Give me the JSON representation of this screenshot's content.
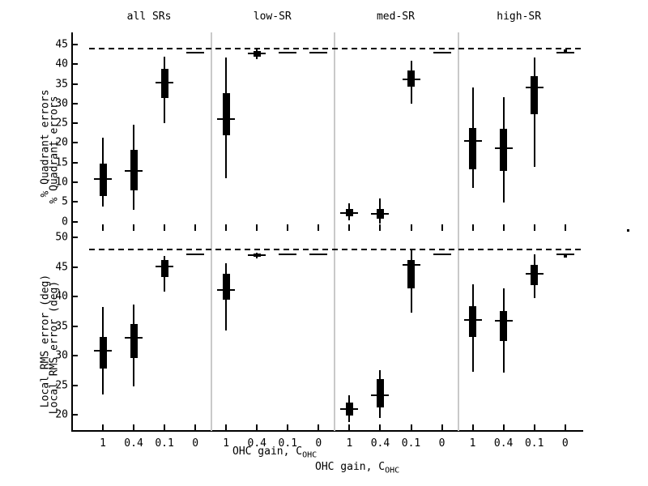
{
  "colors": {
    "foreground": "#000000",
    "background": "#ffffff",
    "separator": "#c9c9c9"
  },
  "column_titles": [
    "all SRs",
    "low-SR",
    "med-SR",
    "high-SR"
  ],
  "xlabel": {
    "text": "OHC gain, C",
    "subscript": "OHC",
    "note": "label rendered twice in original figure"
  },
  "chart_data": [
    {
      "type": "boxplot",
      "panel": "top",
      "ylabel": "% Quadrant errors",
      "ylabel_drawn_twice": true,
      "ylim": [
        -2.3,
        48.1
      ],
      "yticks": [
        0,
        5,
        10,
        15,
        20,
        25,
        30,
        35,
        40,
        45
      ],
      "dashed_reference_line": 43.9,
      "categories": [
        "1",
        "0.4",
        "0.1",
        "0"
      ],
      "groups": [
        {
          "name": "all SRs",
          "boxes": [
            {
              "x": "1",
              "whisker_low": 3.8,
              "q1": 6.6,
              "median": 10.9,
              "q3": 14.8,
              "whisker_high": 21.3
            },
            {
              "x": "0.4",
              "whisker_low": 3.1,
              "q1": 8.0,
              "median": 12.8,
              "q3": 18.2,
              "whisker_high": 24.7
            },
            {
              "x": "0.1",
              "whisker_low": 25.1,
              "q1": 31.3,
              "median": 35.3,
              "q3": 38.9,
              "whisker_high": 41.8
            },
            {
              "x": "0",
              "median": 42.9,
              "line_only": true
            }
          ]
        },
        {
          "name": "low-SR",
          "boxes": [
            {
              "x": "1",
              "whisker_low": 11.0,
              "q1": 22.0,
              "median": 26.1,
              "q3": 32.6,
              "whisker_high": 41.7
            },
            {
              "x": "0.4",
              "whisker_low": 41.2,
              "q1": 41.9,
              "median": 42.7,
              "q3": 43.3,
              "whisker_high": 43.7
            },
            {
              "x": "0.1",
              "median": 42.9,
              "line_only": true
            },
            {
              "x": "0",
              "median": 42.9,
              "line_only": true
            }
          ]
        },
        {
          "name": "med-SR",
          "boxes": [
            {
              "x": "1",
              "whisker_low": 0.4,
              "q1": 1.3,
              "median": 2.1,
              "q3": 3.2,
              "whisker_high": 4.7
            },
            {
              "x": "0.4",
              "whisker_low": -0.5,
              "q1": 0.8,
              "median": 1.9,
              "q3": 3.2,
              "whisker_high": 5.9
            },
            {
              "x": "0.1",
              "whisker_low": 29.9,
              "q1": 34.3,
              "median": 36.1,
              "q3": 38.3,
              "whisker_high": 40.9
            },
            {
              "x": "0",
              "median": 42.9,
              "line_only": true
            }
          ]
        },
        {
          "name": "high-SR",
          "boxes": [
            {
              "x": "1",
              "whisker_low": 8.6,
              "q1": 13.3,
              "median": 20.6,
              "q3": 23.7,
              "whisker_high": 34.0
            },
            {
              "x": "0.4",
              "whisker_low": 4.9,
              "q1": 12.8,
              "median": 18.7,
              "q3": 23.6,
              "whisker_high": 31.6
            },
            {
              "x": "0.1",
              "whisker_low": 14.0,
              "q1": 27.3,
              "median": 34.0,
              "q3": 36.9,
              "whisker_high": 41.7
            },
            {
              "x": "0",
              "median": 42.9,
              "line_only": true,
              "outlier": 43.5
            }
          ]
        }
      ]
    },
    {
      "type": "boxplot",
      "panel": "bottom",
      "ylabel": "Local RMS error (deg)",
      "ylabel_drawn_twice": true,
      "ylim": [
        17.2,
        50.7
      ],
      "yticks": [
        20,
        25,
        30,
        35,
        40,
        45,
        50
      ],
      "dashed_reference_line": 48.0,
      "categories": [
        "1",
        "0.4",
        "0.1",
        "0"
      ],
      "groups": [
        {
          "name": "all SRs",
          "boxes": [
            {
              "x": "1",
              "whisker_low": 23.4,
              "q1": 27.8,
              "median": 30.8,
              "q3": 33.1,
              "whisker_high": 38.2
            },
            {
              "x": "0.4",
              "whisker_low": 24.8,
              "q1": 29.6,
              "median": 33.0,
              "q3": 35.3,
              "whisker_high": 38.6
            },
            {
              "x": "0.1",
              "whisker_low": 40.8,
              "q1": 43.3,
              "median": 45.1,
              "q3": 46.1,
              "whisker_high": 46.8
            },
            {
              "x": "0",
              "median": 47.1,
              "line_only": true
            }
          ]
        },
        {
          "name": "low-SR",
          "boxes": [
            {
              "x": "1",
              "whisker_low": 34.2,
              "q1": 39.5,
              "median": 41.1,
              "q3": 43.8,
              "whisker_high": 45.6
            },
            {
              "x": "0.4",
              "whisker_low": 46.5,
              "q1": 46.7,
              "median": 47.0,
              "q3": 47.2,
              "whisker_high": 47.4
            },
            {
              "x": "0.1",
              "median": 47.1,
              "line_only": true
            },
            {
              "x": "0",
              "median": 47.1,
              "line_only": true
            }
          ]
        },
        {
          "name": "med-SR",
          "boxes": [
            {
              "x": "1",
              "whisker_low": 18.8,
              "q1": 19.8,
              "median": 20.9,
              "q3": 22.1,
              "whisker_high": 23.3
            },
            {
              "x": "0.4",
              "whisker_low": 19.4,
              "q1": 21.2,
              "median": 23.3,
              "q3": 26.0,
              "whisker_high": 27.6
            },
            {
              "x": "0.1",
              "whisker_low": 37.2,
              "q1": 41.4,
              "median": 45.4,
              "q3": 46.1,
              "whisker_high": 47.9
            },
            {
              "x": "0",
              "median": 47.1,
              "line_only": true
            }
          ]
        },
        {
          "name": "high-SR",
          "boxes": [
            {
              "x": "1",
              "whisker_low": 27.2,
              "q1": 33.1,
              "median": 36.0,
              "q3": 38.4,
              "whisker_high": 42.1
            },
            {
              "x": "0.4",
              "whisker_low": 27.1,
              "q1": 32.5,
              "median": 35.9,
              "q3": 37.5,
              "whisker_high": 41.4
            },
            {
              "x": "0.1",
              "whisker_low": 39.7,
              "q1": 41.9,
              "median": 43.8,
              "q3": 45.4,
              "whisker_high": 47.1
            },
            {
              "x": "0",
              "median": 47.1,
              "line_only": true,
              "outlier": 46.8
            }
          ]
        }
      ]
    }
  ]
}
